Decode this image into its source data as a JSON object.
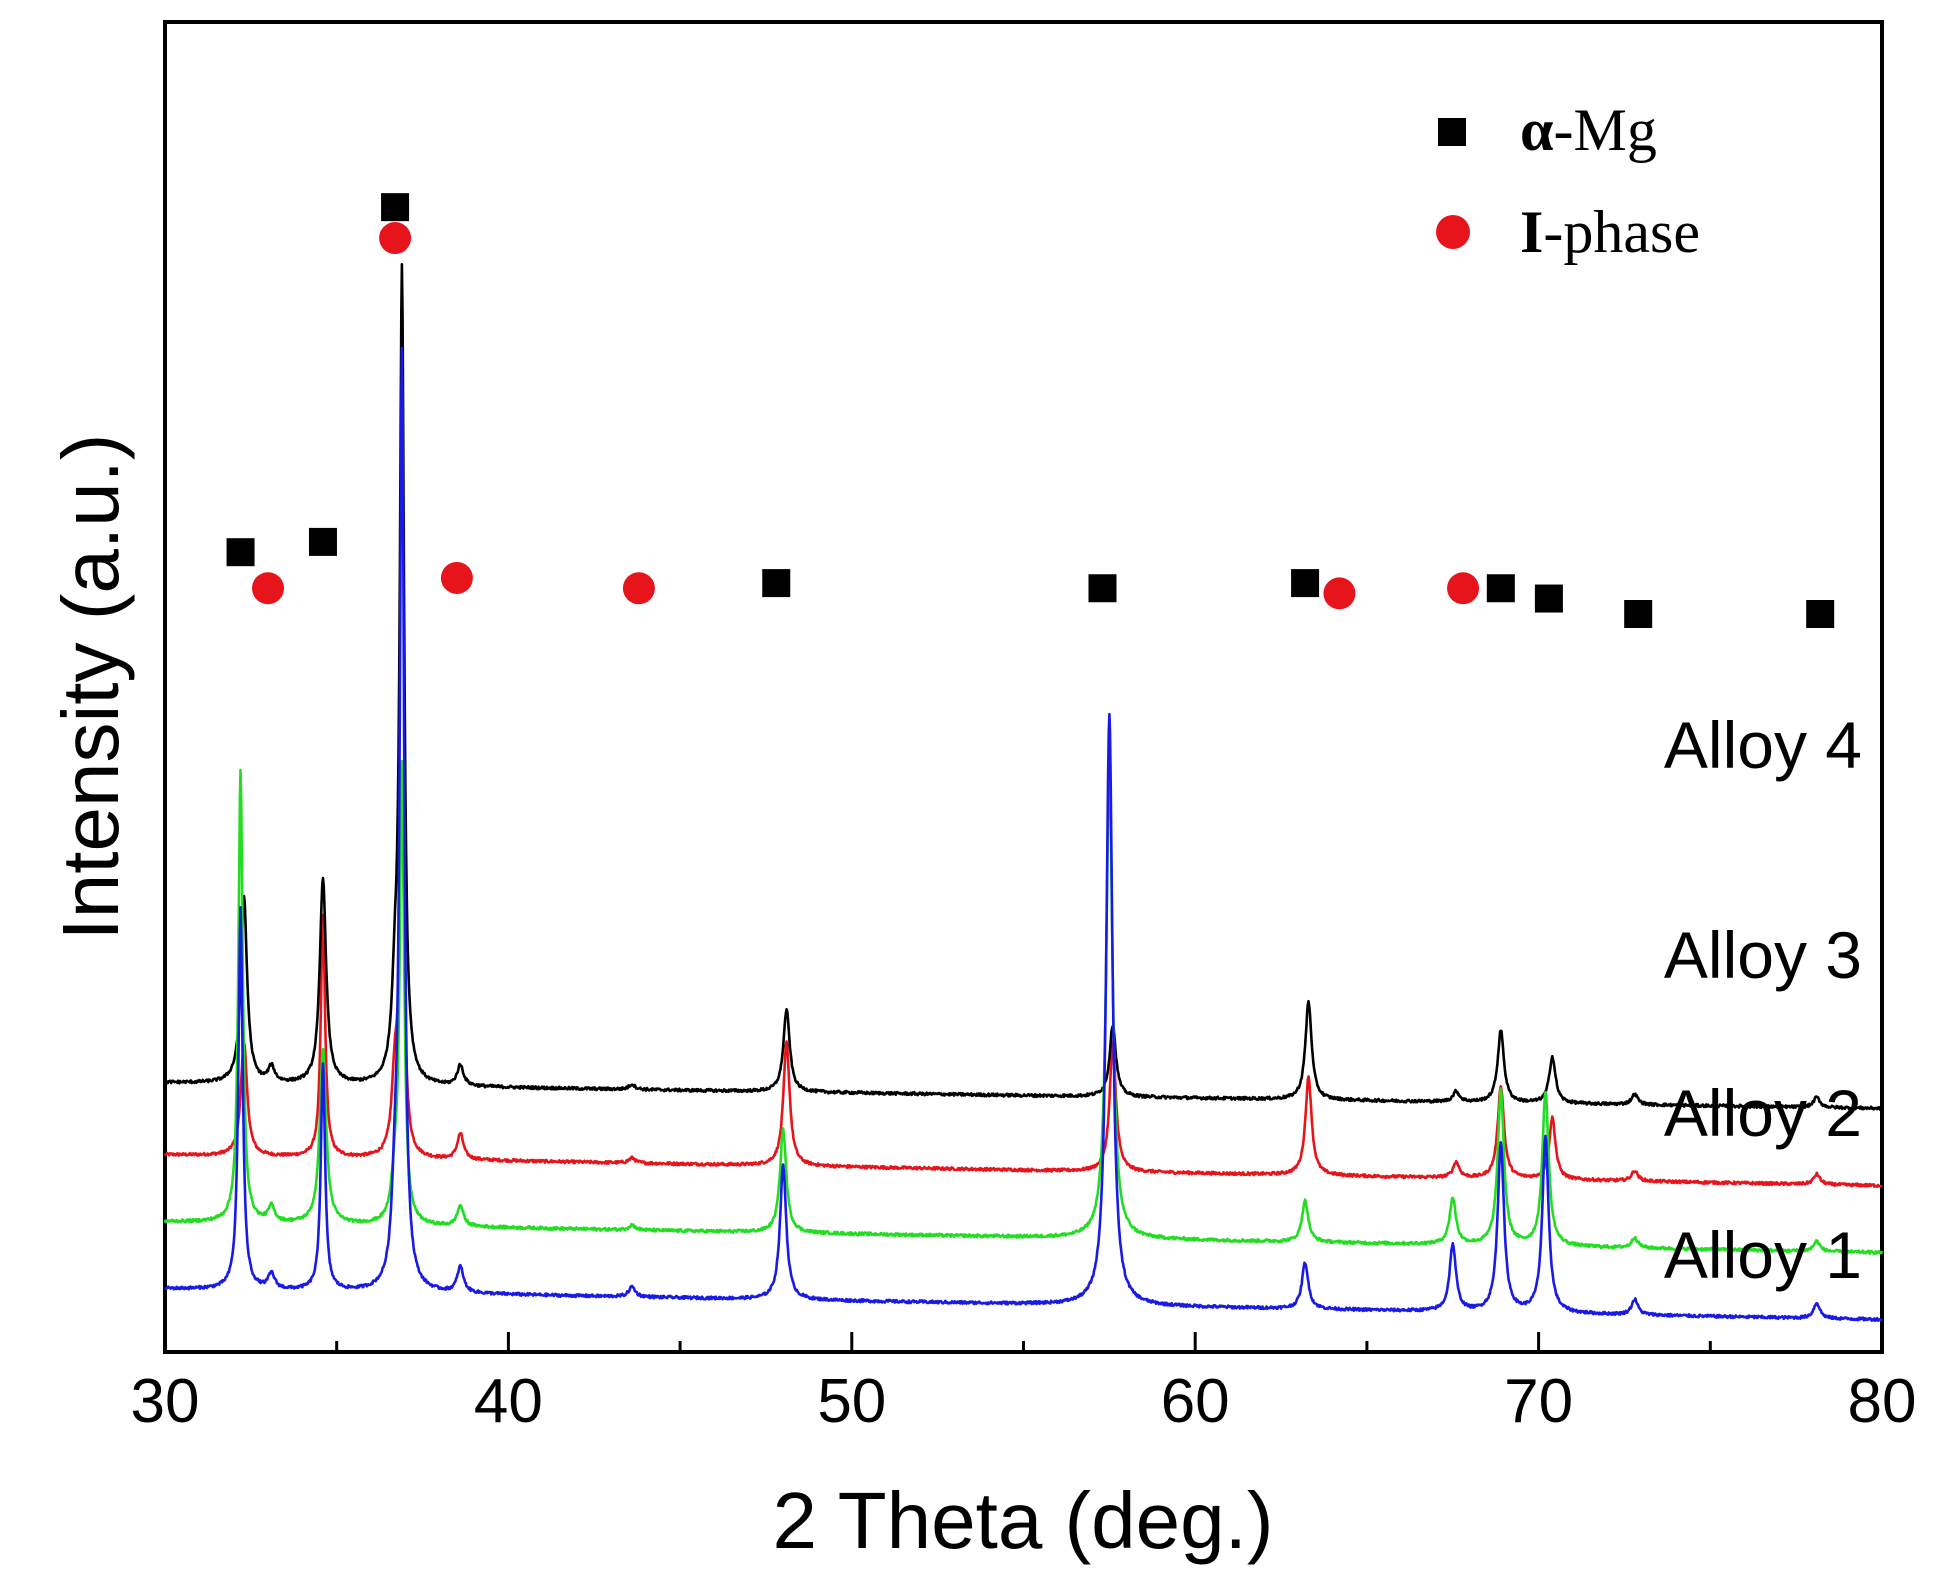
{
  "chart_data": {
    "type": "line",
    "xlabel": "2 Theta (deg.)",
    "ylabel": "Intensity (a.u.)",
    "xlim": [
      30,
      80
    ],
    "x_ticks": [
      "30",
      "40",
      "50",
      "60",
      "70",
      "80"
    ],
    "grid": false,
    "legend": {
      "position": "top-right",
      "entries": [
        {
          "marker": "square",
          "symbol": "α",
          "rest": "-Mg",
          "color": "#000000"
        },
        {
          "marker": "circle",
          "symbol": "I",
          "rest": "-phase",
          "color": "#e8141c"
        }
      ]
    },
    "series": [
      {
        "name": "Alloy 1",
        "color": "#1a1ae6",
        "baseline": 9,
        "baseline_end": 3,
        "peaks": [
          [
            32.2,
            74
          ],
          [
            33.1,
            3
          ],
          [
            34.6,
            44
          ],
          [
            36.7,
            15
          ],
          [
            36.9,
            180
          ],
          [
            38.6,
            5
          ],
          [
            43.6,
            2
          ],
          [
            48.0,
            26
          ],
          [
            57.5,
            115
          ],
          [
            63.2,
            9
          ],
          [
            67.5,
            13
          ],
          [
            68.9,
            33
          ],
          [
            70.2,
            34
          ],
          [
            72.8,
            3
          ],
          [
            78.1,
            3
          ]
        ]
      },
      {
        "name": "Alloy 2",
        "color": "#22dd22",
        "baseline": 22,
        "baseline_end": 16,
        "peaks": [
          [
            32.2,
            88
          ],
          [
            33.1,
            3
          ],
          [
            34.6,
            34
          ],
          [
            36.7,
            8
          ],
          [
            36.9,
            88
          ],
          [
            38.6,
            4
          ],
          [
            43.6,
            1
          ],
          [
            48.0,
            20
          ],
          [
            57.5,
            92
          ],
          [
            63.2,
            8
          ],
          [
            67.5,
            9
          ],
          [
            68.9,
            30
          ],
          [
            70.2,
            30
          ],
          [
            72.8,
            2
          ],
          [
            78.1,
            2
          ]
        ]
      },
      {
        "name": "Alloy 3",
        "color": "#e8141c",
        "baseline": 35,
        "baseline_end": 29,
        "peaks": [
          [
            32.3,
            22
          ],
          [
            34.6,
            47
          ],
          [
            36.7,
            15
          ],
          [
            36.9,
            72
          ],
          [
            38.6,
            5
          ],
          [
            43.6,
            1
          ],
          [
            48.1,
            24
          ],
          [
            57.6,
            25
          ],
          [
            63.3,
            19
          ],
          [
            67.6,
            3
          ],
          [
            68.9,
            18
          ],
          [
            70.4,
            12
          ],
          [
            72.8,
            2
          ],
          [
            78.1,
            2
          ]
        ]
      },
      {
        "name": "Alloy 4",
        "color": "#000000",
        "baseline": 49,
        "baseline_end": 44,
        "peaks": [
          [
            32.3,
            36
          ],
          [
            33.1,
            3
          ],
          [
            34.6,
            40
          ],
          [
            36.7,
            15
          ],
          [
            36.9,
            156
          ],
          [
            38.6,
            4
          ],
          [
            43.6,
            1
          ],
          [
            48.1,
            16
          ],
          [
            57.6,
            14
          ],
          [
            63.3,
            19
          ],
          [
            67.6,
            2
          ],
          [
            68.9,
            14
          ],
          [
            70.4,
            9
          ],
          [
            72.8,
            2
          ],
          [
            78.1,
            2
          ]
        ]
      }
    ],
    "annotations": [
      {
        "marker": "square",
        "x": 32.2,
        "level": 152
      },
      {
        "marker": "square",
        "x": 34.6,
        "level": 154
      },
      {
        "marker": "square",
        "x": 36.7,
        "level": 219
      },
      {
        "marker": "circle",
        "x": 36.7,
        "level": 213
      },
      {
        "marker": "circle",
        "x": 33.0,
        "level": 145
      },
      {
        "marker": "circle",
        "x": 38.5,
        "level": 147
      },
      {
        "marker": "circle",
        "x": 43.8,
        "level": 145
      },
      {
        "marker": "square",
        "x": 47.8,
        "level": 146
      },
      {
        "marker": "square",
        "x": 57.3,
        "level": 145
      },
      {
        "marker": "square",
        "x": 63.2,
        "level": 146
      },
      {
        "marker": "circle",
        "x": 64.2,
        "level": 144
      },
      {
        "marker": "circle",
        "x": 67.8,
        "level": 145
      },
      {
        "marker": "square",
        "x": 68.9,
        "level": 145
      },
      {
        "marker": "square",
        "x": 70.3,
        "level": 143
      },
      {
        "marker": "square",
        "x": 72.9,
        "level": 140
      },
      {
        "marker": "square",
        "x": 78.2,
        "level": 140
      }
    ]
  }
}
